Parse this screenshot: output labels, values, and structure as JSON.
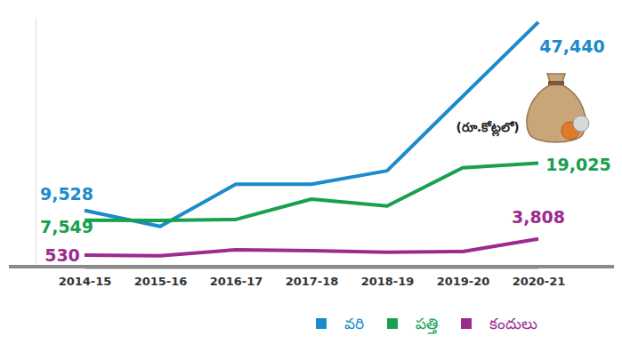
{
  "chart_data": {
    "type": "line",
    "annotation": "(రూ.కోట్లలో)",
    "categories": [
      "2014-15",
      "2015-16",
      "2016-17",
      "2017-18",
      "2018-19",
      "2019-20",
      "2020-21"
    ],
    "series": [
      {
        "name": "వరి",
        "color": "#1a8bcb",
        "values": [
          9528,
          6300,
          14800,
          14800,
          17500,
          32500,
          47440
        ],
        "value_labels": [
          "9,528",
          null,
          null,
          null,
          null,
          null,
          "47,440"
        ]
      },
      {
        "name": "పత్తి",
        "color": "#18a04f",
        "values": [
          7549,
          7500,
          7700,
          11800,
          10400,
          18100,
          19025
        ],
        "value_labels": [
          "7,549",
          null,
          null,
          null,
          null,
          null,
          "19,025"
        ]
      },
      {
        "name": "కందులు",
        "color": "#9b2b8f",
        "values": [
          530,
          400,
          1600,
          1400,
          1100,
          1250,
          3808
        ],
        "value_labels": [
          "530",
          null,
          null,
          null,
          null,
          null,
          "3,808"
        ]
      }
    ],
    "ylim": [
      -1800,
      48300
    ],
    "yticks": [],
    "tick_labels": "x",
    "data_labels": true,
    "legend": "bottom"
  }
}
